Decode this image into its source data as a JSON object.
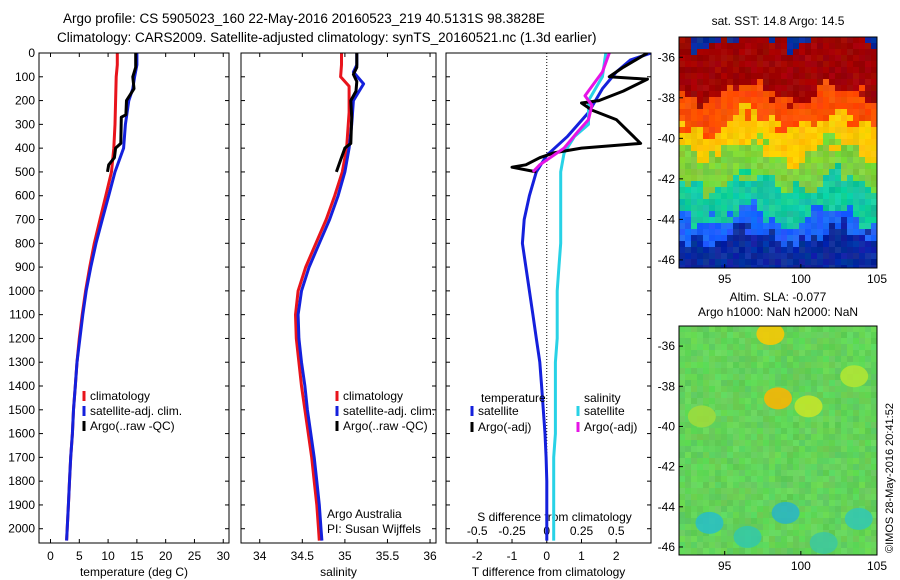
{
  "title": {
    "line1": "Argo profile: CS 5905023_160 22-May-2016 20160523_219 40.5131S 98.3828E",
    "line2": "Climatology: CARS2009. Satellite-adjusted climatology: synTS_20160521.nc (1.3d earlier)"
  },
  "stamp": "©IMOS 28-May-2016 20:41:52",
  "colors": {
    "climatology": "#e8141c",
    "satellite": "#1420dc",
    "argo": "#000000",
    "sat_sdiff": "#28d2e6",
    "argo_sdiff": "#e614e6"
  },
  "chart_data": [
    {
      "type": "line",
      "panel": "temperature",
      "xlabel": "temperature (deg C)",
      "ylabel": "",
      "xlim": [
        -2,
        31
      ],
      "ylim": [
        2060,
        0
      ],
      "xticks": [
        0,
        5,
        10,
        15,
        20,
        25,
        30
      ],
      "yticks": [
        0,
        100,
        200,
        300,
        400,
        500,
        600,
        700,
        800,
        900,
        1000,
        1100,
        1200,
        1300,
        1400,
        1500,
        1600,
        1700,
        1800,
        1900,
        2000
      ],
      "legend": [
        "climatology",
        "satellite-adj. clim.",
        "Argo(..raw -QC)"
      ],
      "series": [
        {
          "name": "climatology",
          "color": "#e8141c",
          "points": [
            [
              11.6,
              0
            ],
            [
              11.6,
              50
            ],
            [
              11.4,
              100
            ],
            [
              11.3,
              200
            ],
            [
              11.2,
              300
            ],
            [
              11.0,
              400
            ],
            [
              10.6,
              500
            ],
            [
              9.6,
              600
            ],
            [
              8.6,
              700
            ],
            [
              7.6,
              800
            ],
            [
              6.8,
              900
            ],
            [
              6.1,
              1000
            ],
            [
              5.5,
              1100
            ],
            [
              5.0,
              1200
            ],
            [
              4.6,
              1300
            ],
            [
              4.3,
              1400
            ],
            [
              4.0,
              1500
            ],
            [
              3.8,
              1600
            ],
            [
              3.5,
              1700
            ],
            [
              3.3,
              1800
            ],
            [
              3.1,
              1900
            ],
            [
              2.9,
              2000
            ],
            [
              2.8,
              2050
            ]
          ]
        },
        {
          "name": "satellite-adj. clim.",
          "color": "#1420dc",
          "points": [
            [
              15.0,
              0
            ],
            [
              15.0,
              50
            ],
            [
              14.6,
              100
            ],
            [
              14.3,
              150
            ],
            [
              13.6,
              200
            ],
            [
              13.0,
              300
            ],
            [
              12.7,
              400
            ],
            [
              11.2,
              500
            ],
            [
              10.1,
              600
            ],
            [
              9.0,
              700
            ],
            [
              7.9,
              800
            ],
            [
              7.0,
              900
            ],
            [
              6.2,
              1000
            ],
            [
              5.6,
              1100
            ],
            [
              5.1,
              1200
            ],
            [
              4.6,
              1300
            ],
            [
              4.3,
              1400
            ],
            [
              4.0,
              1500
            ],
            [
              3.8,
              1600
            ],
            [
              3.5,
              1700
            ],
            [
              3.3,
              1800
            ],
            [
              3.1,
              1900
            ],
            [
              2.9,
              2000
            ],
            [
              2.8,
              2050
            ]
          ]
        },
        {
          "name": "Argo(..raw -QC)",
          "color": "#000000",
          "points": [
            [
              14.8,
              0
            ],
            [
              14.8,
              60
            ],
            [
              14.3,
              100
            ],
            [
              14.5,
              150
            ],
            [
              13.2,
              200
            ],
            [
              13.1,
              260
            ],
            [
              12.3,
              270
            ],
            [
              12.2,
              380
            ],
            [
              11.3,
              400
            ],
            [
              11.1,
              440
            ],
            [
              10.1,
              470
            ],
            [
              9.9,
              500
            ]
          ]
        }
      ]
    },
    {
      "type": "line",
      "panel": "salinity",
      "xlabel": "salinity",
      "ylabel": "",
      "xlim": [
        33.78,
        36.07
      ],
      "ylim": [
        2060,
        0
      ],
      "xticks": [
        34,
        34.5,
        35,
        35.5,
        36
      ],
      "xtick_labels": [
        "34",
        "34.5",
        "35",
        "35.5",
        "36"
      ],
      "legend": [
        "climatology",
        "satellite-adj. clim.",
        "Argo(..raw -QC)"
      ],
      "annotation": [
        "Argo Australia",
        "PI: Susan Wijffels"
      ],
      "series": [
        {
          "name": "climatology",
          "color": "#e8141c",
          "points": [
            [
              34.96,
              0
            ],
            [
              34.96,
              50
            ],
            [
              34.95,
              100
            ],
            [
              35.05,
              140
            ],
            [
              35.05,
              250
            ],
            [
              35.02,
              400
            ],
            [
              34.97,
              500
            ],
            [
              34.88,
              600
            ],
            [
              34.78,
              700
            ],
            [
              34.66,
              800
            ],
            [
              34.54,
              900
            ],
            [
              34.45,
              1000
            ],
            [
              34.42,
              1100
            ],
            [
              34.43,
              1200
            ],
            [
              34.46,
              1300
            ],
            [
              34.49,
              1400
            ],
            [
              34.53,
              1500
            ],
            [
              34.57,
              1600
            ],
            [
              34.61,
              1700
            ],
            [
              34.64,
              1800
            ],
            [
              34.67,
              1900
            ],
            [
              34.69,
              2000
            ],
            [
              34.7,
              2050
            ]
          ]
        },
        {
          "name": "satellite-adj. clim.",
          "color": "#1420dc",
          "points": [
            [
              35.14,
              0
            ],
            [
              35.14,
              50
            ],
            [
              35.1,
              80
            ],
            [
              35.22,
              130
            ],
            [
              35.1,
              200
            ],
            [
              35.08,
              300
            ],
            [
              35.05,
              400
            ],
            [
              35.0,
              500
            ],
            [
              34.92,
              600
            ],
            [
              34.82,
              700
            ],
            [
              34.7,
              800
            ],
            [
              34.58,
              900
            ],
            [
              34.49,
              1000
            ],
            [
              34.45,
              1100
            ],
            [
              34.46,
              1200
            ],
            [
              34.49,
              1300
            ],
            [
              34.53,
              1400
            ],
            [
              34.56,
              1500
            ],
            [
              34.6,
              1600
            ],
            [
              34.64,
              1700
            ],
            [
              34.67,
              1800
            ],
            [
              34.7,
              1900
            ],
            [
              34.72,
              2000
            ],
            [
              34.73,
              2050
            ]
          ]
        },
        {
          "name": "Argo(..raw -QC)",
          "color": "#000000",
          "points": [
            [
              35.14,
              0
            ],
            [
              35.14,
              60
            ],
            [
              35.1,
              90
            ],
            [
              35.14,
              120
            ],
            [
              35.13,
              160
            ],
            [
              35.07,
              200
            ],
            [
              35.08,
              270
            ],
            [
              35.07,
              380
            ],
            [
              35.0,
              400
            ],
            [
              34.95,
              450
            ],
            [
              34.9,
              500
            ]
          ]
        }
      ]
    },
    {
      "type": "line",
      "panel": "difference",
      "xlabel": "T difference from climatology",
      "top_axis_label": "S difference from climatology",
      "xlim": [
        -2.9,
        3.0
      ],
      "ylim": [
        2060,
        0
      ],
      "xticks": [
        -2,
        -1,
        0,
        1,
        2
      ],
      "top_xticks": [
        -0.5,
        -0.25,
        0,
        0.25,
        0.5
      ],
      "top_xtick_labels": [
        "-0.5",
        "-0.25",
        "0",
        "0.25",
        "0.5"
      ],
      "legend_groups": [
        "temperature",
        "salinity"
      ],
      "legend": [
        "satellite",
        "Argo(-adj)",
        "satellite",
        "Argo(-adj)"
      ],
      "series": [
        {
          "name": "satellite",
          "group": "temperature",
          "color": "#1420dc",
          "points": [
            [
              3.0,
              0
            ],
            [
              2.4,
              30
            ],
            [
              2.0,
              80
            ],
            [
              1.6,
              150
            ],
            [
              1.2,
              250
            ],
            [
              0.6,
              350
            ],
            [
              0.0,
              430
            ],
            [
              -0.3,
              500
            ],
            [
              -0.5,
              600
            ],
            [
              -0.65,
              700
            ],
            [
              -0.7,
              800
            ],
            [
              -0.6,
              900
            ],
            [
              -0.5,
              1000
            ],
            [
              -0.4,
              1100
            ],
            [
              -0.3,
              1200
            ],
            [
              -0.2,
              1300
            ],
            [
              -0.15,
              1400
            ],
            [
              -0.1,
              1500
            ],
            [
              -0.05,
              1600
            ],
            [
              -0.02,
              1700
            ],
            [
              0.0,
              1800
            ],
            [
              0.0,
              1900
            ],
            [
              0.0,
              2000
            ],
            [
              0.0,
              2050
            ]
          ]
        },
        {
          "name": "satellite",
          "group": "salinity",
          "color": "#28d2e6",
          "points": [
            [
              1.7,
              0
            ],
            [
              1.6,
              100
            ],
            [
              1.2,
              200
            ],
            [
              1.2,
              300
            ],
            [
              0.8,
              350
            ],
            [
              0.5,
              420
            ],
            [
              0.4,
              500
            ],
            [
              0.4,
              600
            ],
            [
              0.4,
              700
            ],
            [
              0.4,
              800
            ],
            [
              0.35,
              900
            ],
            [
              0.3,
              1000
            ],
            [
              0.3,
              1100
            ],
            [
              0.3,
              1200
            ],
            [
              0.25,
              1300
            ],
            [
              0.25,
              1400
            ],
            [
              0.25,
              1500
            ],
            [
              0.25,
              1600
            ],
            [
              0.2,
              1700
            ],
            [
              0.2,
              1800
            ],
            [
              0.2,
              1900
            ],
            [
              0.2,
              2000
            ],
            [
              0.2,
              2050
            ]
          ]
        },
        {
          "name": "Argo(-adj)",
          "group": "temperature",
          "color": "#000000",
          "points": [
            [
              2.9,
              0
            ],
            [
              2.2,
              60
            ],
            [
              1.8,
              100
            ],
            [
              2.9,
              110
            ],
            [
              2.2,
              160
            ],
            [
              1.5,
              200
            ],
            [
              1.0,
              210
            ],
            [
              1.3,
              240
            ],
            [
              2.0,
              280
            ],
            [
              2.7,
              380
            ],
            [
              1.0,
              400
            ],
            [
              0.2,
              420
            ],
            [
              -0.2,
              440
            ],
            [
              -0.6,
              470
            ],
            [
              -1.0,
              480
            ],
            [
              -0.3,
              500
            ]
          ]
        },
        {
          "name": "Argo(-adj)",
          "group": "salinity",
          "color": "#e614e6",
          "points": [
            [
              1.8,
              0
            ],
            [
              1.6,
              80
            ],
            [
              1.4,
              120
            ],
            [
              1.1,
              180
            ],
            [
              1.3,
              220
            ],
            [
              1.2,
              280
            ],
            [
              0.9,
              330
            ],
            [
              0.5,
              400
            ],
            [
              0.1,
              440
            ],
            [
              -0.2,
              470
            ],
            [
              -0.4,
              500
            ]
          ]
        }
      ]
    },
    {
      "type": "heatmap",
      "panel": "sst_map",
      "title": "sat. SST: 14.8 Argo: 14.5",
      "xlim": [
        92,
        105
      ],
      "ylim": [
        -46.4,
        -35
      ],
      "xticks": [
        95,
        100,
        105
      ],
      "yticks": [
        -36,
        -38,
        -40,
        -42,
        -44,
        -46
      ],
      "colormap": "jet",
      "bands": [
        {
          "lat": [
            -35,
            -37.8
          ],
          "color": "#a00000"
        },
        {
          "lat": [
            -37.8,
            -39.2
          ],
          "color": "#ff5000"
        },
        {
          "lat": [
            -39.2,
            -40.6
          ],
          "color": "#ffc800"
        },
        {
          "lat": [
            -40.6,
            -42.2
          ],
          "color": "#7ed23c"
        },
        {
          "lat": [
            -42.2,
            -43.8
          ],
          "color": "#14c8a0"
        },
        {
          "lat": [
            -43.8,
            -44.8
          ],
          "color": "#1e64ff"
        },
        {
          "lat": [
            -44.8,
            -46.4
          ],
          "color": "#0a2aa0"
        }
      ]
    },
    {
      "type": "heatmap",
      "panel": "sla_map",
      "title_line1": "Altim. SLA: -0.077",
      "title_line2": "Argo h1000: NaN h2000: NaN",
      "xlim": [
        92,
        105
      ],
      "ylim": [
        -46.4,
        -35
      ],
      "xticks": [
        95,
        100,
        105
      ],
      "yticks": [
        -36,
        -38,
        -40,
        -42,
        -44,
        -46
      ],
      "colormap": "jet",
      "background_color": "#64d25a",
      "blobs": [
        {
          "lon": 98.5,
          "lat": -38.6,
          "color": "#ffb400"
        },
        {
          "lon": 98.0,
          "lat": -35.4,
          "color": "#ffc800"
        },
        {
          "lon": 100.5,
          "lat": -39.0,
          "color": "#c8e628"
        },
        {
          "lon": 103.5,
          "lat": -37.5,
          "color": "#b4e632"
        },
        {
          "lon": 103.8,
          "lat": -44.6,
          "color": "#32c8b4"
        },
        {
          "lon": 94.0,
          "lat": -44.8,
          "color": "#28bec8"
        },
        {
          "lon": 96.5,
          "lat": -45.5,
          "color": "#32c8aa"
        },
        {
          "lon": 99.0,
          "lat": -44.3,
          "color": "#28b4c8"
        },
        {
          "lon": 101.5,
          "lat": -45.8,
          "color": "#3cc8a0"
        },
        {
          "lon": 93.5,
          "lat": -39.5,
          "color": "#a0dc3c"
        }
      ]
    }
  ]
}
